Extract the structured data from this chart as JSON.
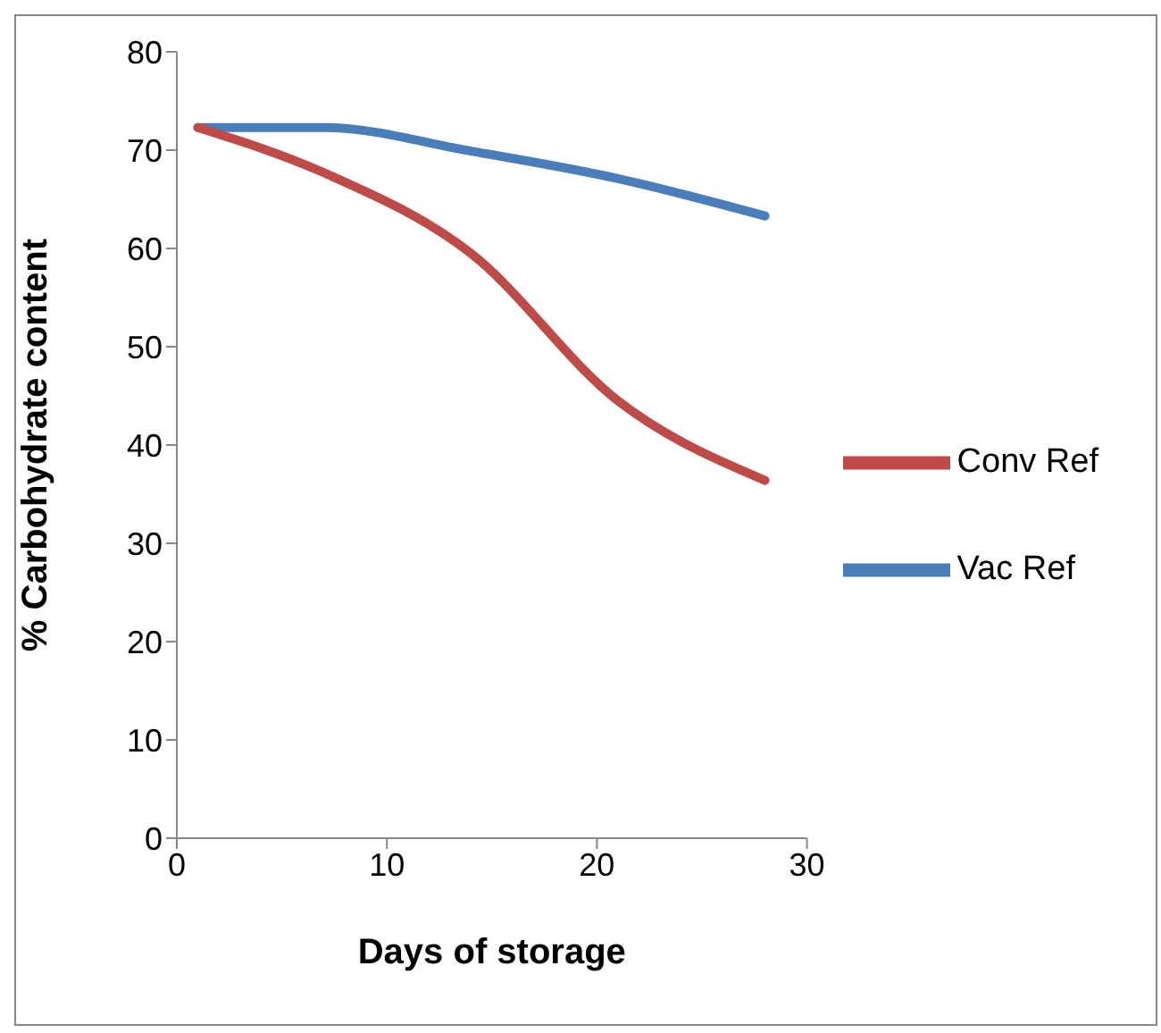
{
  "chart_data": {
    "type": "line",
    "xlabel": "Days of storage",
    "ylabel": "% Carbohydrate content",
    "x": [
      1,
      7,
      14,
      21,
      28
    ],
    "series": [
      {
        "name": "Vac Ref",
        "color": "#4a7ebb",
        "values": [
          72.3,
          72.3,
          69.9,
          67.1,
          63.3
        ]
      },
      {
        "name": "Conv Ref",
        "color": "#be4b48",
        "values": [
          72.3,
          67.7,
          59.5,
          44.5,
          36.4
        ]
      }
    ],
    "xlim": [
      0,
      30
    ],
    "xticks": [
      0,
      10,
      20,
      30
    ],
    "ylim": [
      0,
      80
    ],
    "yticks": [
      0,
      10,
      20,
      30,
      40,
      50,
      60,
      70,
      80
    ],
    "grid": false,
    "legend": "right",
    "marker": "none",
    "line_style": "solid"
  }
}
